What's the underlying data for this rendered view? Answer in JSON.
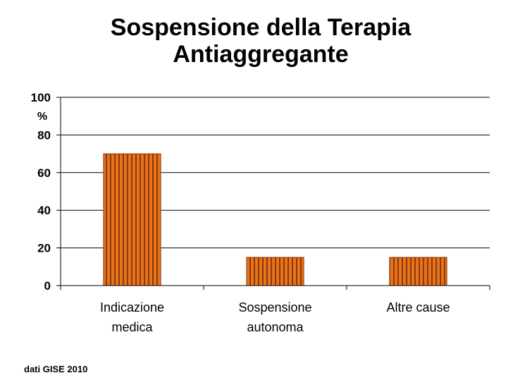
{
  "chart_data": {
    "type": "bar",
    "title": "Sospensione della Terapia Antiaggregante",
    "title_lines": [
      "Sospensione della Terapia",
      "Antiaggregante"
    ],
    "ylabel": "%",
    "ylim": [
      0,
      100
    ],
    "yticks": [
      "0",
      "20",
      "40",
      "60",
      "80",
      "100"
    ],
    "categories": [
      [
        "Indicazione",
        "medica"
      ],
      [
        "Sospensione",
        "autonoma"
      ],
      [
        "Altre cause"
      ]
    ],
    "values": [
      70,
      15,
      15
    ],
    "grid": true,
    "legend": "none",
    "bar_color": "#e8731a",
    "bar_stripe_color": "#8a3a0e"
  },
  "source_note": "dati GISE 2010"
}
